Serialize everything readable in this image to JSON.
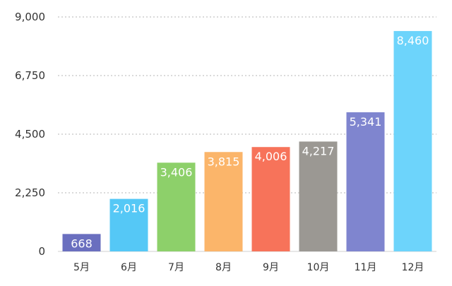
{
  "chart_data": {
    "type": "bar",
    "title": "",
    "xlabel": "",
    "ylabel": "",
    "categories": [
      "5月",
      "6月",
      "7月",
      "8月",
      "9月",
      "10月",
      "11月",
      "12月"
    ],
    "values": [
      668,
      2016,
      3406,
      3815,
      4006,
      4217,
      5341,
      8460
    ],
    "value_labels": [
      "668",
      "2,016",
      "3,406",
      "3,815",
      "4,006",
      "4,217",
      "5,341",
      "8,460"
    ],
    "colors": [
      "#6a6fbf",
      "#55c8f6",
      "#8dd06a",
      "#fbb56a",
      "#f7735a",
      "#9b9893",
      "#7f85cf",
      "#6dd4fb"
    ],
    "ylim": [
      0,
      9000
    ],
    "yticks": [
      0,
      2250,
      4500,
      6750,
      9000
    ],
    "ytick_labels": [
      "0",
      "2,250",
      "4,500",
      "6,750",
      "9,000"
    ],
    "grid": true,
    "legend": "none"
  }
}
